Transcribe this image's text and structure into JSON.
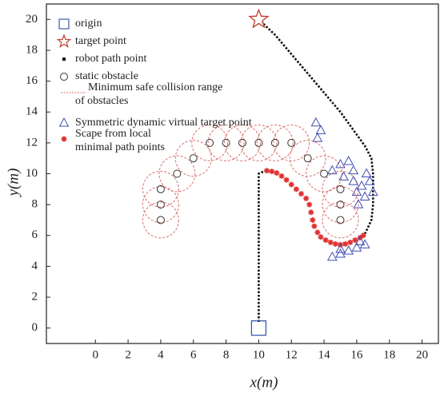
{
  "chart_data": {
    "type": "scatter",
    "x_label": "x(m)",
    "y_label": "y(m)",
    "xlim": [
      -3,
      21
    ],
    "ylim": [
      -1,
      21
    ],
    "xticks": [
      0,
      2,
      4,
      6,
      8,
      10,
      12,
      14,
      16,
      18,
      20
    ],
    "yticks": [
      0,
      2,
      4,
      6,
      8,
      10,
      12,
      14,
      16,
      18,
      20
    ],
    "series": [
      {
        "name": "origin",
        "marker": "square",
        "color": "#3a5aa8",
        "x": [
          10
        ],
        "y": [
          0
        ]
      },
      {
        "name": "target point",
        "marker": "star",
        "color": "#c0392b",
        "x": [
          10
        ],
        "y": [
          20
        ]
      },
      {
        "name": "robot path point",
        "marker": "path",
        "color": "#111111",
        "x": [
          10,
          10,
          10,
          10,
          10.4,
          null,
          16.5,
          16.9,
          17,
          17,
          17,
          16.9,
          16.5,
          15,
          13,
          11,
          10.2
        ],
        "y": [
          0.4,
          3,
          6,
          10,
          10.2,
          null,
          6.1,
          7,
          8,
          9,
          10,
          11,
          11.8,
          14,
          16.5,
          19,
          19.8
        ]
      },
      {
        "name": "static obstacle",
        "marker": "circle",
        "color": "#333333",
        "x": [
          4,
          4,
          4,
          5,
          6,
          7,
          8,
          9,
          10,
          11,
          12,
          13,
          14,
          15,
          15,
          15
        ],
        "y": [
          7,
          8,
          9,
          10,
          11,
          12,
          12,
          12,
          12,
          12,
          12,
          11,
          10,
          9,
          8,
          7
        ]
      },
      {
        "name": "Minimum safe collision range\nof obstacles",
        "marker": "dashed-circle",
        "color": "#d9706e",
        "radius": 1.1,
        "x": [
          4,
          4,
          4,
          5,
          6,
          7,
          8,
          9,
          10,
          11,
          12,
          13,
          14,
          15,
          15,
          15
        ],
        "y": [
          7,
          8,
          9,
          10,
          11,
          12,
          12,
          12,
          12,
          12,
          12,
          11,
          10,
          9,
          8,
          7
        ]
      },
      {
        "name": "Symmetric dynamic virtual target point",
        "marker": "triangle",
        "color": "#3f4fb0",
        "x": [
          13.5,
          13.8,
          13.6,
          14.5,
          15,
          15.5,
          15.2,
          15.8,
          16.3,
          16.8,
          17,
          16.5,
          16,
          16.6,
          15.8,
          16.1,
          14.5,
          15,
          15.5,
          16,
          16.5,
          15,
          16.2
        ],
        "y": [
          13.3,
          12.8,
          12.3,
          10.2,
          10.6,
          10.8,
          9.8,
          9.5,
          9.2,
          9.5,
          8.8,
          8.5,
          8.8,
          10,
          10.2,
          8,
          4.6,
          4.8,
          5,
          5.2,
          5.4,
          5.1,
          5.6
        ]
      },
      {
        "name": "Scape  from  local\nminimal path points",
        "marker": "asterisk",
        "color": "#e03030",
        "x": [
          10.5,
          10.8,
          11.1,
          11.4,
          11.7,
          12,
          12.3,
          12.6,
          12.9,
          13.1,
          13.2,
          13.3,
          13.4,
          13.6,
          13.8,
          14.1,
          14.4,
          14.7,
          15,
          15.3,
          15.6,
          15.9,
          16.2,
          16.4
        ],
        "y": [
          10.2,
          10.15,
          10.05,
          9.85,
          9.6,
          9.3,
          9,
          8.7,
          8.4,
          8,
          7.5,
          7,
          6.6,
          6.2,
          5.9,
          5.7,
          5.55,
          5.45,
          5.4,
          5.45,
          5.55,
          5.7,
          5.85,
          6
        ]
      }
    ]
  }
}
